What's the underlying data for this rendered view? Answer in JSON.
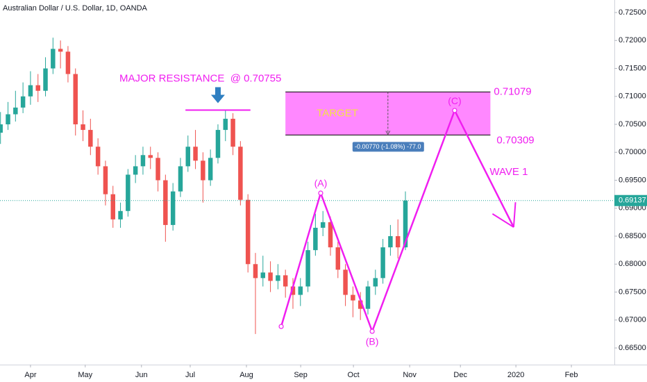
{
  "chart_data": {
    "type": "candlestick",
    "title": "Australian Dollar / U.S. Dollar, 1D, OANDA",
    "up_color": "#26a69a",
    "down_color": "#ef5350",
    "x": [
      -12,
      -9,
      -6,
      -3,
      0,
      3,
      6,
      9,
      12,
      15,
      18,
      21,
      24,
      27,
      30,
      33,
      36,
      39,
      42,
      45,
      48,
      51,
      54,
      57,
      60,
      63,
      66,
      69,
      72,
      75,
      78,
      81,
      84,
      87,
      90,
      93,
      96,
      99,
      102,
      105,
      108,
      111,
      114,
      117,
      120,
      123,
      126,
      129,
      132,
      135,
      138,
      141,
      144,
      147,
      150
    ],
    "open": [
      0.7035,
      0.705,
      0.7068,
      0.708,
      0.71,
      0.712,
      0.711,
      0.715,
      0.7185,
      0.718,
      0.714,
      0.705,
      0.704,
      0.701,
      0.6975,
      0.6925,
      0.688,
      0.6895,
      0.696,
      0.6975,
      0.6995,
      0.699,
      0.695,
      0.687,
      0.693,
      0.6975,
      0.701,
      0.6985,
      0.695,
      0.699,
      0.704,
      0.706,
      0.701,
      0.6915,
      0.68,
      0.6775,
      0.6785,
      0.677,
      0.678,
      0.676,
      0.6745,
      0.676,
      0.6825,
      0.6865,
      0.6875,
      0.683,
      0.679,
      0.6745,
      0.6735,
      0.672,
      0.676,
      0.6775,
      0.683,
      0.685,
      0.683
    ],
    "high": [
      0.7072,
      0.709,
      0.711,
      0.7125,
      0.7145,
      0.714,
      0.717,
      0.7205,
      0.72,
      0.719,
      0.715,
      0.7075,
      0.706,
      0.7025,
      0.6985,
      0.694,
      0.691,
      0.697,
      0.6995,
      0.701,
      0.701,
      0.7,
      0.696,
      0.6945,
      0.699,
      0.703,
      0.704,
      0.7,
      0.7005,
      0.705,
      0.70755,
      0.707,
      0.702,
      0.6925,
      0.682,
      0.6815,
      0.6805,
      0.68,
      0.679,
      0.6775,
      0.6775,
      0.684,
      0.689,
      0.6895,
      0.6885,
      0.684,
      0.68,
      0.676,
      0.675,
      0.677,
      0.679,
      0.6845,
      0.687,
      0.688,
      0.693
    ],
    "low": [
      0.7015,
      0.704,
      0.7055,
      0.707,
      0.7085,
      0.709,
      0.71,
      0.714,
      0.715,
      0.7125,
      0.703,
      0.702,
      0.6995,
      0.696,
      0.6905,
      0.6865,
      0.6865,
      0.6885,
      0.6945,
      0.696,
      0.697,
      0.693,
      0.684,
      0.686,
      0.692,
      0.6965,
      0.697,
      0.691,
      0.694,
      0.698,
      0.702,
      0.6995,
      0.6905,
      0.6785,
      0.6675,
      0.676,
      0.675,
      0.6755,
      0.674,
      0.672,
      0.6725,
      0.675,
      0.6815,
      0.685,
      0.6815,
      0.6775,
      0.6725,
      0.6705,
      0.67,
      0.671,
      0.6745,
      0.6765,
      0.6815,
      0.681,
      0.6825
    ],
    "close": [
      0.705,
      0.7068,
      0.708,
      0.71,
      0.712,
      0.711,
      0.715,
      0.7185,
      0.718,
      0.714,
      0.705,
      0.704,
      0.701,
      0.6975,
      0.6925,
      0.688,
      0.6895,
      0.696,
      0.6975,
      0.6995,
      0.699,
      0.695,
      0.687,
      0.693,
      0.6975,
      0.701,
      0.6985,
      0.695,
      0.699,
      0.704,
      0.706,
      0.701,
      0.6915,
      0.68,
      0.6775,
      0.6785,
      0.677,
      0.678,
      0.676,
      0.6745,
      0.676,
      0.6825,
      0.6865,
      0.6875,
      0.683,
      0.679,
      0.6745,
      0.6735,
      0.672,
      0.676,
      0.6775,
      0.683,
      0.685,
      0.683,
      0.69137
    ],
    "xlim": [
      -12.2,
      233.6
    ],
    "xticks": [
      {
        "value": 0,
        "label": "Apr"
      },
      {
        "value": 21.9,
        "label": "May"
      },
      {
        "value": 44.4,
        "label": "Jun"
      },
      {
        "value": 63.9,
        "label": "Jul"
      },
      {
        "value": 86.4,
        "label": "Aug"
      },
      {
        "value": 108.1,
        "label": "Sep"
      },
      {
        "value": 129.2,
        "label": "Oct"
      },
      {
        "value": 151.7,
        "label": "Nov"
      },
      {
        "value": 172,
        "label": "Dec"
      },
      {
        "value": 194.2,
        "label": "2020"
      },
      {
        "value": 216.4,
        "label": "Feb"
      }
    ],
    "ylim": [
      0.66202,
      0.72724
    ],
    "yticks": [
      {
        "value": 0.665,
        "label": "0.66500"
      },
      {
        "value": 0.67,
        "label": "0.67000"
      },
      {
        "value": 0.675,
        "label": "0.67500"
      },
      {
        "value": 0.68,
        "label": "0.68000"
      },
      {
        "value": 0.685,
        "label": "0.68500"
      },
      {
        "value": 0.69,
        "label": "0.69000"
      },
      {
        "value": 0.695,
        "label": "0.69500"
      },
      {
        "value": 0.7,
        "label": "0.70000"
      },
      {
        "value": 0.705,
        "label": "0.70500"
      },
      {
        "value": 0.71,
        "label": "0.71000"
      },
      {
        "value": 0.715,
        "label": "0.71500"
      },
      {
        "value": 0.72,
        "label": "0.72000"
      },
      {
        "value": 0.725,
        "label": "0.72500"
      }
    ],
    "annotation_color": "#f01ef0",
    "resistance": {
      "label": "MAJOR RESISTANCE  @ 0.70755",
      "value": 0.70755,
      "x": [
        62,
        88
      ],
      "arrow_color": "#2f7fc1"
    },
    "target_zone": {
      "label": "TARGET",
      "x": [
        102,
        184
      ],
      "top": 0.71079,
      "bottom": 0.70309,
      "measure": "-0.00770 (-1.08%) -77.0",
      "fill": "#ff88ff",
      "label_color": "#f5e342",
      "measure_color": "#4a7ebb"
    },
    "wave": {
      "x": [
        100.3,
        116.1,
        136.7,
        169.7,
        193.3
      ],
      "y": [
        0.66885,
        0.6927,
        0.66798,
        0.70748,
        0.68661
      ],
      "point_labels": [
        null,
        "(A)",
        "(B)",
        "(C)",
        null
      ],
      "label": "WAVE 1"
    }
  }
}
